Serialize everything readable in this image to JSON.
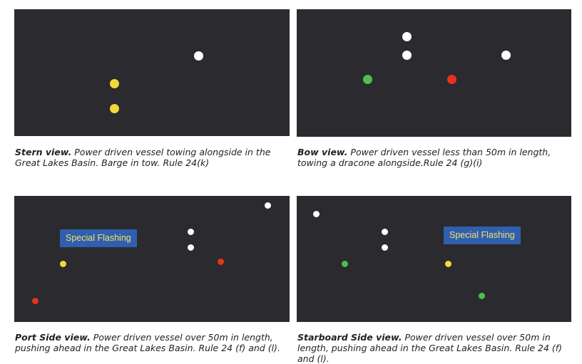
{
  "panels": [
    {
      "id": "stern",
      "caption_bold": "Stern view.",
      "caption_rest": " Power driven vessel towing alongside in the Great Lakes Basin. Barge in tow. Rule 24(k)",
      "lights": [
        {
          "name": "white-light",
          "color": "#ffffff"
        },
        {
          "name": "yellow-light-upper",
          "color": "#f2d93a"
        },
        {
          "name": "yellow-light-lower",
          "color": "#f2d93a"
        }
      ]
    },
    {
      "id": "bow",
      "caption_bold": "Bow view.",
      "caption_rest": " Power driven vessel less than 50m in length, towing a dracone alongside.Rule 24 (g)(i)",
      "lights": [
        {
          "name": "white-light-upper",
          "color": "#ffffff"
        },
        {
          "name": "white-light-lower",
          "color": "#ffffff"
        },
        {
          "name": "white-light-right",
          "color": "#ffffff"
        },
        {
          "name": "green-light",
          "color": "#4cc04a"
        },
        {
          "name": "red-light",
          "color": "#e8321e"
        }
      ]
    },
    {
      "id": "port",
      "caption_bold": "Port Side view.",
      "caption_rest": " Power driven vessel over 50m in length, pushing ahead in the Great Lakes Basin. Rule 24 (f) and (l).",
      "badge": "Special Flashing",
      "lights": [
        {
          "name": "white-light-masthead",
          "color": "#ffffff"
        },
        {
          "name": "white-light-upper",
          "color": "#ffffff"
        },
        {
          "name": "white-light-lower",
          "color": "#ffffff"
        },
        {
          "name": "red-light-upper",
          "color": "#e8321e"
        },
        {
          "name": "yellow-light",
          "color": "#f2d93a"
        },
        {
          "name": "red-light-lower",
          "color": "#e8321e"
        }
      ]
    },
    {
      "id": "starboard",
      "caption_bold": "Starboard Side view.",
      "caption_rest": " Power driven vessel over 50m in length, pushing ahead in the Great Lakes Basin. Rule 24 (f) and (l).",
      "badge": "Special Flashing",
      "lights": [
        {
          "name": "white-light-masthead",
          "color": "#ffffff"
        },
        {
          "name": "white-light-upper",
          "color": "#ffffff"
        },
        {
          "name": "white-light-lower",
          "color": "#ffffff"
        },
        {
          "name": "green-light-upper",
          "color": "#4cc04a"
        },
        {
          "name": "yellow-light",
          "color": "#f2d93a"
        },
        {
          "name": "green-light-lower",
          "color": "#4cc04a"
        }
      ]
    }
  ]
}
